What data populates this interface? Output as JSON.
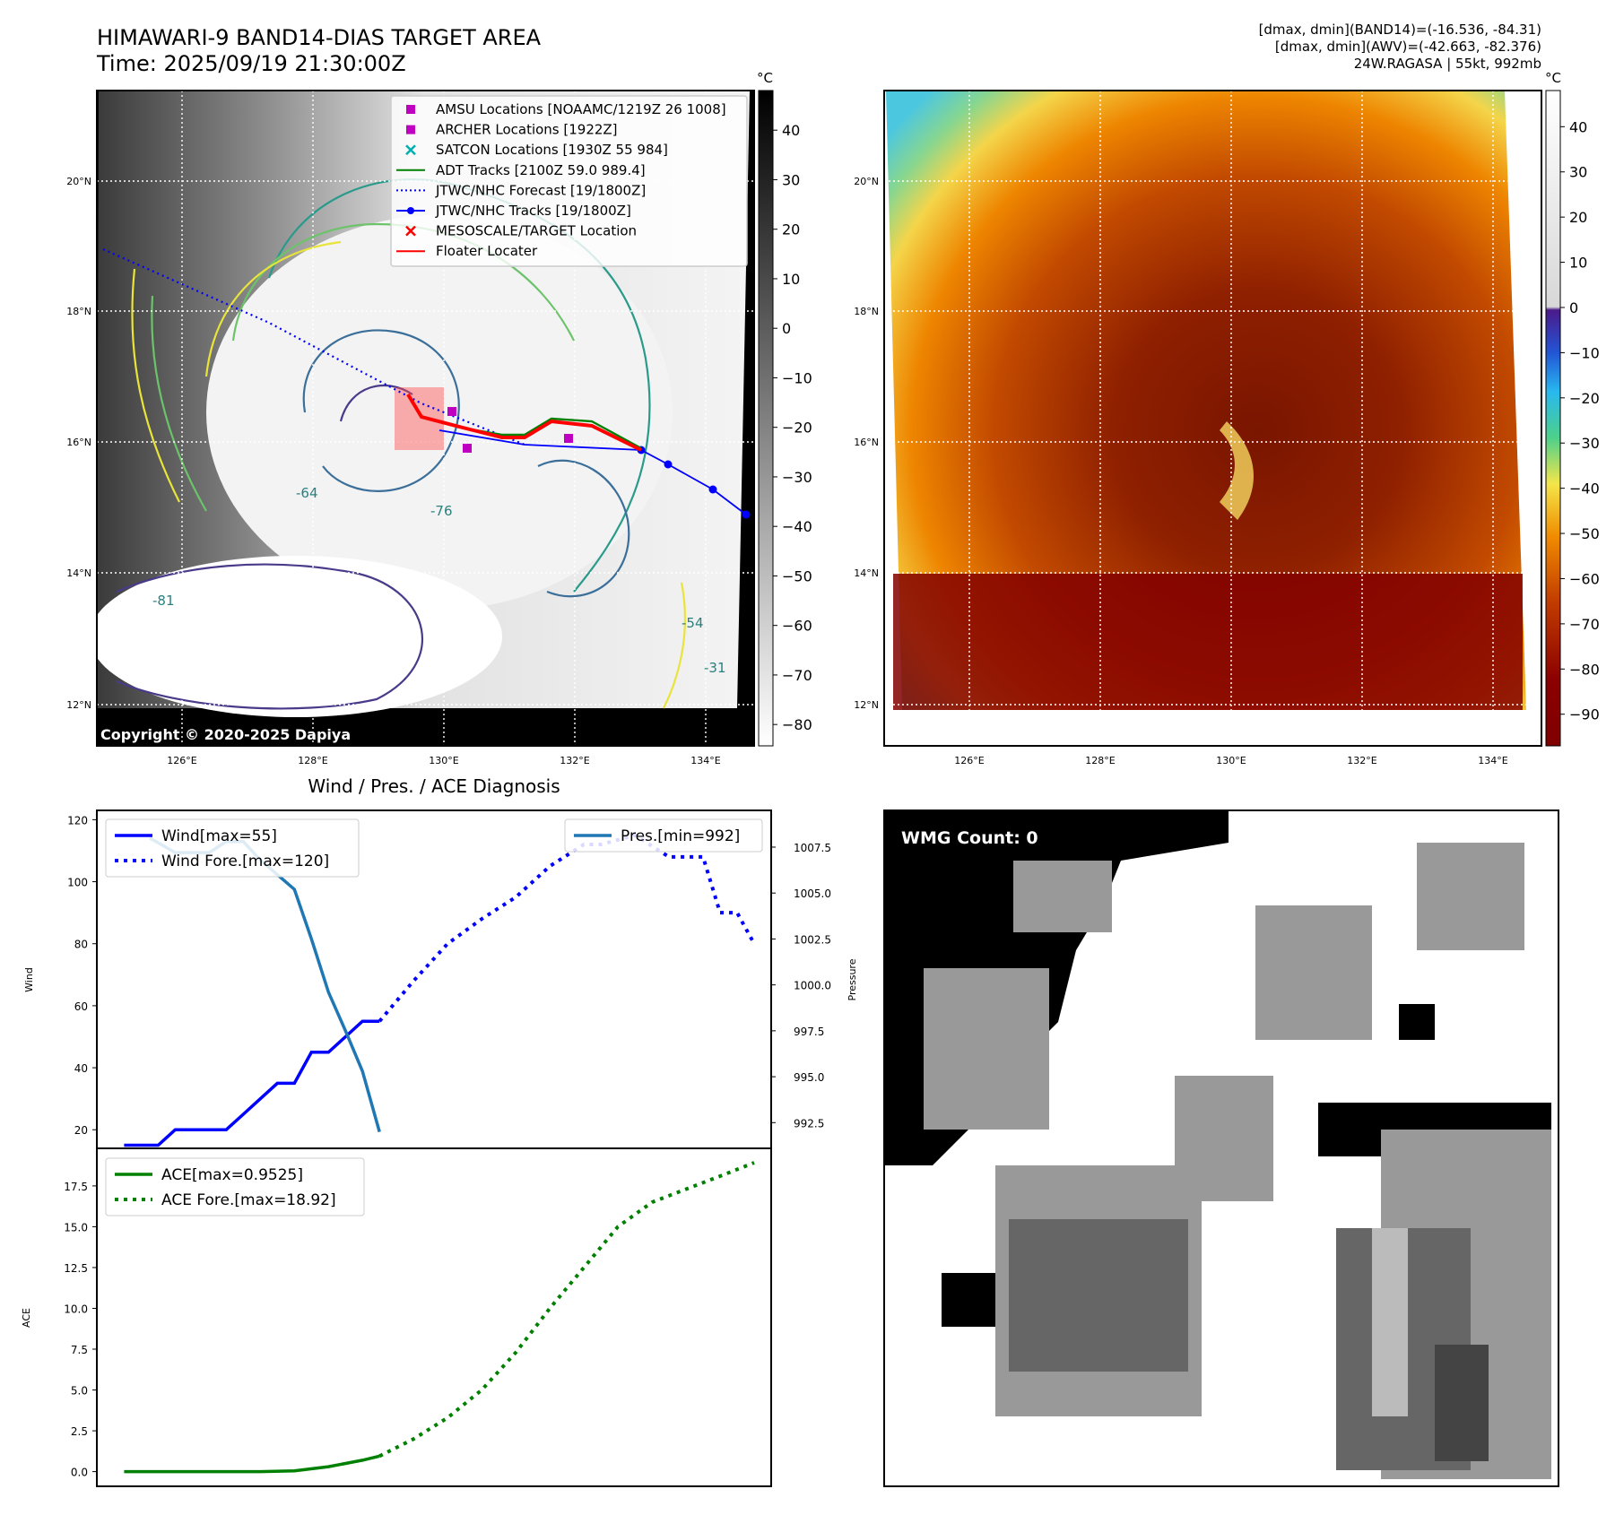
{
  "header": {
    "title_line1": "HIMAWARI-9 BAND14-DIAS TARGET AREA",
    "title_line2": "Time: 2025/09/19 21:30:00Z",
    "stats_line1": "[dmax, dmin](BAND14)=(-16.536, -84.31)",
    "stats_line2": "[dmax, dmin](AWV)=(-42.663, -82.376)",
    "stats_line3": "24W.RAGASA | 55kt, 992mb"
  },
  "map": {
    "lat_labels": [
      "20°N",
      "18°N",
      "16°N",
      "14°N",
      "12°N"
    ],
    "lon_labels": [
      "126°E",
      "128°E",
      "130°E",
      "132°E",
      "134°E"
    ],
    "copyright": "Copyright © 2020-2025 Dapiya",
    "contour_labels": [
      "-64",
      "-76",
      "-81",
      "-54",
      "-31"
    ],
    "legend": [
      {
        "label": "AMSU Locations [NOAAMC/1219Z 26 1008]",
        "kind": "square",
        "color": "#c000c0"
      },
      {
        "label": "ARCHER Locations [1922Z]",
        "kind": "square",
        "color": "#c000c0"
      },
      {
        "label": "SATCON Locations [1930Z 55 984]",
        "kind": "x",
        "color": "#00b0b0"
      },
      {
        "label": "ADT Tracks [2100Z 59.0 989.4]",
        "kind": "line",
        "color": "#008000"
      },
      {
        "label": "JTWC/NHC Forecast [19/1800Z]",
        "kind": "dotted",
        "color": "#0000ff"
      },
      {
        "label": "JTWC/NHC Tracks [19/1800Z]",
        "kind": "line-dot",
        "color": "#0000ff"
      },
      {
        "label": "MESOSCALE/TARGET Location",
        "kind": "x",
        "color": "#ff0000"
      },
      {
        "label": "Floater Locater",
        "kind": "line",
        "color": "#ff0000"
      }
    ]
  },
  "colorbar_left": {
    "unit": "°C",
    "ticks": [
      "40",
      "30",
      "20",
      "10",
      "0",
      "−10",
      "−20",
      "−30",
      "−40",
      "−50",
      "−60",
      "−70",
      "−80"
    ]
  },
  "colorbar_right": {
    "unit": "°C",
    "ticks": [
      "40",
      "30",
      "20",
      "10",
      "0",
      "−10",
      "−20",
      "−30",
      "−40",
      "−50",
      "−60",
      "−70",
      "−80",
      "−90"
    ]
  },
  "wmg": {
    "label": "WMG Count: 0"
  },
  "chart_data": [
    {
      "type": "line",
      "title": "Wind / Pres. / ACE Diagnosis",
      "ylabel": "Wind",
      "y2label": "Pressure",
      "ylim": [
        14,
        123
      ],
      "y2lim": [
        991.1,
        1009.5
      ],
      "y_ticks": [
        "20",
        "40",
        "60",
        "80",
        "100",
        "120"
      ],
      "y2_ticks": [
        "992.5",
        "995.0",
        "997.5",
        "1000.0",
        "1002.5",
        "1005.0",
        "1007.5"
      ],
      "series": [
        {
          "name": "Wind[max=55]",
          "style": "solid",
          "color": "#0000ff",
          "x": [
            0,
            1,
            2,
            3,
            4,
            5,
            6,
            7,
            8,
            9,
            10,
            11,
            12,
            13,
            14,
            15
          ],
          "values": [
            15,
            15,
            15,
            20,
            20,
            20,
            20,
            25,
            30,
            35,
            35,
            45,
            45,
            50,
            55,
            55
          ]
        },
        {
          "name": "Wind Fore.[max=120]",
          "style": "dotted",
          "color": "#0000ff",
          "x": [
            15,
            17,
            19,
            21,
            23,
            25,
            27,
            28,
            30,
            32,
            34,
            35,
            36,
            37
          ],
          "values": [
            55,
            68,
            80,
            88,
            95,
            105,
            112,
            112,
            115,
            108,
            108,
            90,
            90,
            80
          ]
        },
        {
          "name": "Pres.[min=992]",
          "style": "solid",
          "color": "#1f77b4",
          "axis": "right",
          "x": [
            1.5,
            3,
            4,
            5,
            6,
            7,
            8,
            9,
            10,
            11,
            12,
            13,
            14,
            15
          ],
          "values": [
            1008,
            1007.2,
            1007.2,
            1007.2,
            1007.8,
            1007.8,
            1006.8,
            1006,
            1005.2,
            1002.5,
            999.6,
            997.5,
            995.3,
            992
          ]
        }
      ]
    },
    {
      "type": "line",
      "ylabel": "ACE",
      "ylim": [
        -0.9,
        19.8
      ],
      "y_ticks": [
        "0.0",
        "2.5",
        "5.0",
        "7.5",
        "10.0",
        "12.5",
        "15.0",
        "17.5"
      ],
      "series": [
        {
          "name": "ACE[max=0.9525]",
          "style": "solid",
          "color": "#008000",
          "x": [
            0,
            2,
            4,
            6,
            8,
            10,
            12,
            13,
            14,
            15
          ],
          "values": [
            0,
            0,
            0,
            0,
            0,
            0.05,
            0.3,
            0.5,
            0.7,
            0.95
          ]
        },
        {
          "name": "ACE Fore.[max=18.92]",
          "style": "dotted",
          "color": "#008000",
          "x": [
            15,
            17,
            19,
            21,
            23,
            25,
            27,
            29,
            31,
            33,
            35,
            37
          ],
          "values": [
            0.95,
            2,
            3.3,
            5,
            7.3,
            10,
            12.5,
            15,
            16.5,
            17.3,
            18.1,
            18.92
          ]
        }
      ]
    }
  ]
}
